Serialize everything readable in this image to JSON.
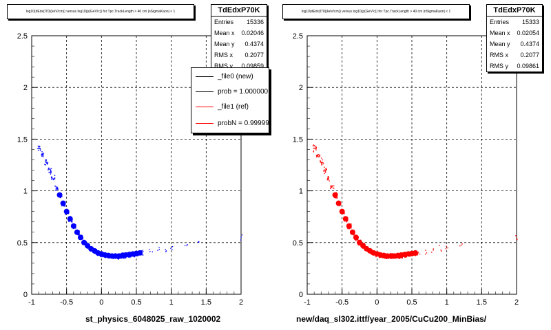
{
  "chart_data": [
    {
      "type": "scatter",
      "title": "log10(dEdx(I70)(keV/cm)) versus log10(p(GeV/c)) for Tpc.TrackLength > 40 cm |nSigmaKaon| < 1",
      "xlabel": "st_physics_6048025_raw_1020002",
      "ylabel": "",
      "xlim": [
        -1,
        2
      ],
      "ylim": [
        0,
        2.5
      ],
      "x_ticks": [
        "-1",
        "-0.5",
        "0",
        "0.5",
        "1",
        "1.5",
        "2"
      ],
      "y_ticks": [
        "0",
        "0.5",
        "1",
        "1.5",
        "2",
        "2.5"
      ],
      "grid": true,
      "series": [
        {
          "name": "_file0 (new)",
          "color": "#0000ff",
          "x": [
            -0.9,
            -0.85,
            -0.8,
            -0.75,
            -0.7,
            -0.65,
            -0.6,
            -0.55,
            -0.5,
            -0.45,
            -0.4,
            -0.35,
            -0.3,
            -0.25,
            -0.2,
            -0.15,
            -0.1,
            -0.05,
            0,
            0.05,
            0.1,
            0.15,
            0.2,
            0.25,
            0.3,
            0.35,
            0.4,
            0.45,
            0.5,
            0.55,
            0.6,
            0.7,
            0.8,
            0.9,
            1.0,
            1.2,
            1.4,
            2.0
          ],
          "y": [
            1.42,
            1.35,
            1.28,
            1.2,
            1.12,
            1.04,
            0.96,
            0.88,
            0.8,
            0.73,
            0.66,
            0.6,
            0.55,
            0.5,
            0.47,
            0.44,
            0.42,
            0.4,
            0.39,
            0.38,
            0.375,
            0.37,
            0.37,
            0.37,
            0.375,
            0.38,
            0.385,
            0.39,
            0.395,
            0.4,
            0.41,
            0.42,
            0.43,
            0.44,
            0.45,
            0.47,
            0.49,
            0.55
          ]
        }
      ],
      "stats": {
        "name": "TdEdxP70K",
        "rows": [
          {
            "label": "Entries",
            "value": "15336"
          },
          {
            "label": "Mean x",
            "value": "0.02046"
          },
          {
            "label": "Mean y",
            "value": "0.4374"
          },
          {
            "label": "RMS x",
            "value": "0.2077"
          },
          {
            "label": "RMS y",
            "value": "0.09859"
          }
        ]
      },
      "legend": [
        {
          "label": "_file0 (new)",
          "color": "#000000"
        },
        {
          "label": "prob = 1.000000",
          "color": "#000000"
        },
        {
          "label": "_file1 (ref)",
          "color": "#ff0000"
        },
        {
          "label": "probN = 0.999990",
          "color": "#ff0000"
        }
      ]
    },
    {
      "type": "scatter",
      "title": "log10(dEdx(I70)(keV/cm)) versus log10(p(GeV/c)) for Tpc.TrackLength > 40 cm |nSigmaKaon| < 1",
      "xlabel": "new/daq_sl302.ittf/year_2005/CuCu200_MinBias/",
      "ylabel": "",
      "xlim": [
        -1,
        2
      ],
      "ylim": [
        0,
        2.5
      ],
      "x_ticks": [
        "-1",
        "-0.5",
        "0",
        "0.5",
        "1",
        "1.5",
        "2"
      ],
      "y_ticks": [
        "0",
        "0.5",
        "1",
        "1.5",
        "2",
        "2.5"
      ],
      "grid": true,
      "series": [
        {
          "name": "_file1 (ref)",
          "color": "#ff0000",
          "x": [
            -0.9,
            -0.85,
            -0.8,
            -0.75,
            -0.7,
            -0.65,
            -0.6,
            -0.55,
            -0.5,
            -0.45,
            -0.4,
            -0.35,
            -0.3,
            -0.25,
            -0.2,
            -0.15,
            -0.1,
            -0.05,
            0,
            0.05,
            0.1,
            0.15,
            0.2,
            0.25,
            0.3,
            0.35,
            0.4,
            0.45,
            0.5,
            0.55,
            0.6,
            0.7,
            0.8,
            0.9,
            1.0,
            1.2,
            2.0
          ],
          "y": [
            1.42,
            1.35,
            1.28,
            1.2,
            1.12,
            1.04,
            0.96,
            0.88,
            0.8,
            0.73,
            0.66,
            0.6,
            0.55,
            0.5,
            0.47,
            0.44,
            0.42,
            0.4,
            0.39,
            0.38,
            0.375,
            0.37,
            0.37,
            0.37,
            0.375,
            0.38,
            0.385,
            0.39,
            0.395,
            0.4,
            0.41,
            0.42,
            0.43,
            0.44,
            0.45,
            0.47,
            0.55
          ]
        }
      ],
      "stats": {
        "name": "TdEdxP70K",
        "rows": [
          {
            "label": "Entries",
            "value": "15333"
          },
          {
            "label": "Mean x",
            "value": "0.02054"
          },
          {
            "label": "Mean y",
            "value": "0.4374"
          },
          {
            "label": "RMS x",
            "value": "0.2077"
          },
          {
            "label": "RMS y",
            "value": "0.09861"
          }
        ]
      }
    }
  ]
}
